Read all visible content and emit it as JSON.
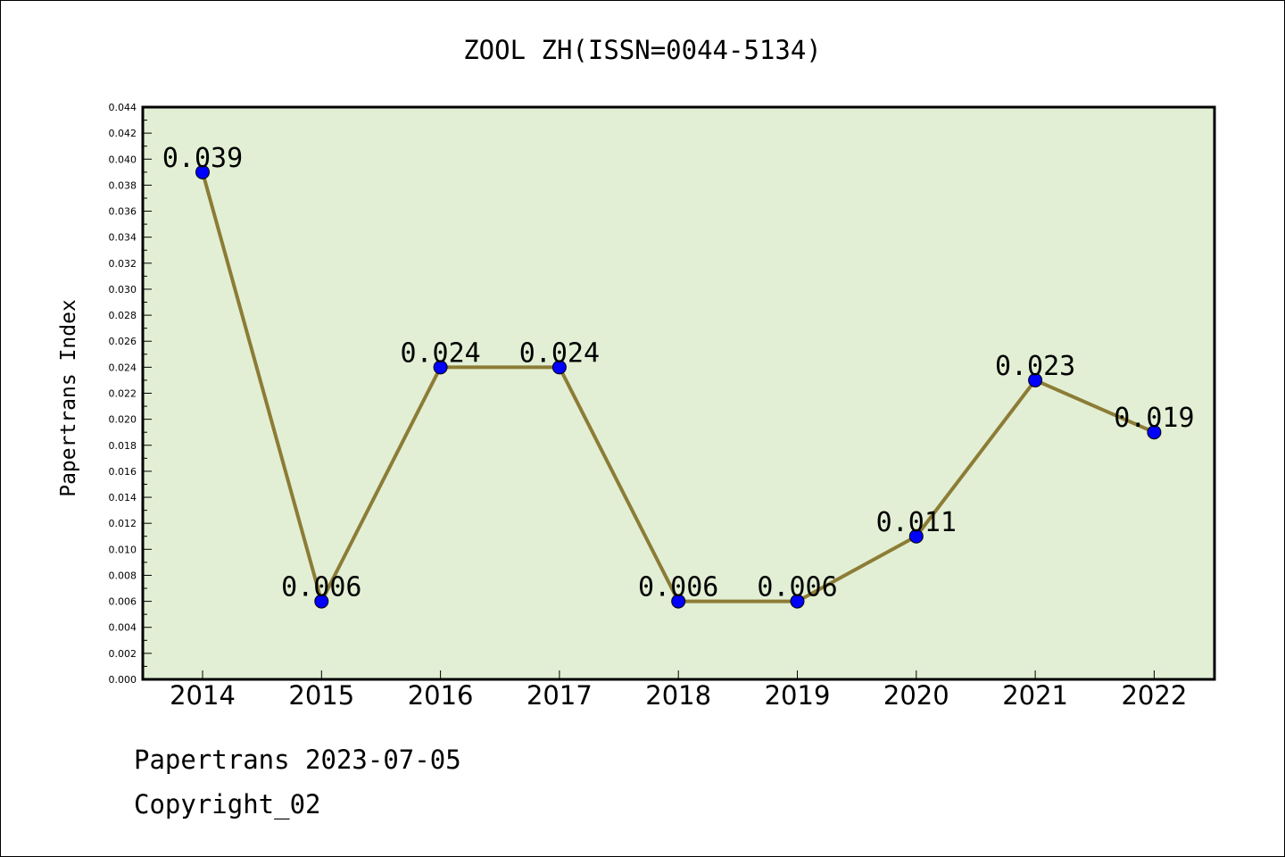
{
  "chart_data": {
    "type": "line",
    "title": "ZOOL ZH(ISSN=0044-5134)",
    "xlabel": "",
    "ylabel": "Papertrans Index",
    "categories": [
      "2014",
      "2015",
      "2016",
      "2017",
      "2018",
      "2019",
      "2020",
      "2021",
      "2022"
    ],
    "series": [
      {
        "values": [
          0.039,
          0.006,
          0.024,
          0.024,
          0.006,
          0.006,
          0.011,
          0.023,
          0.019
        ],
        "data_labels": [
          "0.039",
          "0.006",
          "0.024",
          "0.024",
          "0.006",
          "0.006",
          "0.011",
          "0.023",
          "0.019"
        ]
      }
    ],
    "ylim": [
      0,
      0.044
    ],
    "yticks": [
      "0.000",
      "0.002",
      "0.004",
      "0.006",
      "0.008",
      "0.010",
      "0.012",
      "0.014",
      "0.016",
      "0.018",
      "0.020",
      "0.022",
      "0.024",
      "0.026",
      "0.028",
      "0.030",
      "0.032",
      "0.034",
      "0.036",
      "0.038",
      "0.040",
      "0.042",
      "0.044"
    ],
    "grid": false,
    "legend": "none",
    "colors": {
      "plot_background": "#e2efd4",
      "line": "#8c7c36",
      "marker": "#0000ff"
    }
  },
  "footer": {
    "line1": "Papertrans 2023-07-05",
    "line2": "Copyright_02"
  }
}
